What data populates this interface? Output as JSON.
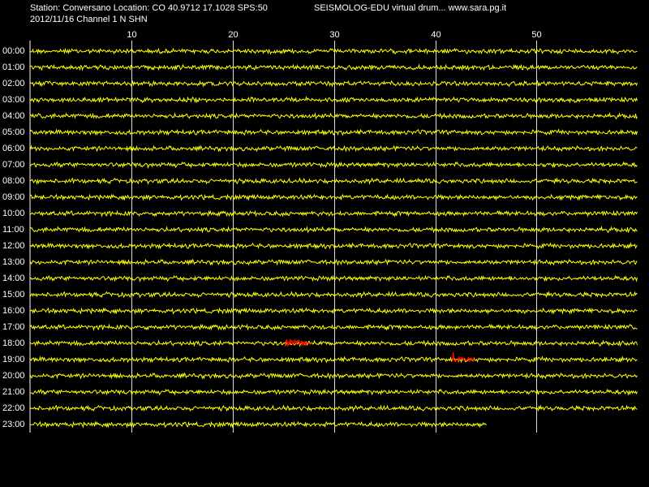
{
  "chart_data": {
    "type": "seismogram",
    "station": "Station: Conversano Location: CO 40.9712 17.1028 SPS:50",
    "title": "SEISMOLOG-EDU virtual drum... www.sara.pg.it",
    "subtitle": "2012/11/16  Channel 1 N SHN",
    "categories": [
      "00:00",
      "01:00",
      "02:00",
      "03:00",
      "04:00",
      "05:00",
      "06:00",
      "07:00",
      "08:00",
      "09:00",
      "10:00",
      "11:00",
      "12:00",
      "13:00",
      "14:00",
      "15:00",
      "16:00",
      "17:00",
      "18:00",
      "19:00",
      "20:00",
      "21:00",
      "22:00",
      "23:00"
    ],
    "xlim": [
      0,
      60
    ],
    "xticks": [
      10,
      20,
      30,
      40,
      50
    ],
    "grid": true,
    "color": "#ffff00",
    "event_color": "#ff0000",
    "trace_end": 45.1,
    "events": [
      {
        "category": "18:00",
        "x": [
          25.1,
          27.9
        ]
      },
      {
        "category": "19:00",
        "x": [
          41.7,
          43.9
        ]
      }
    ]
  }
}
